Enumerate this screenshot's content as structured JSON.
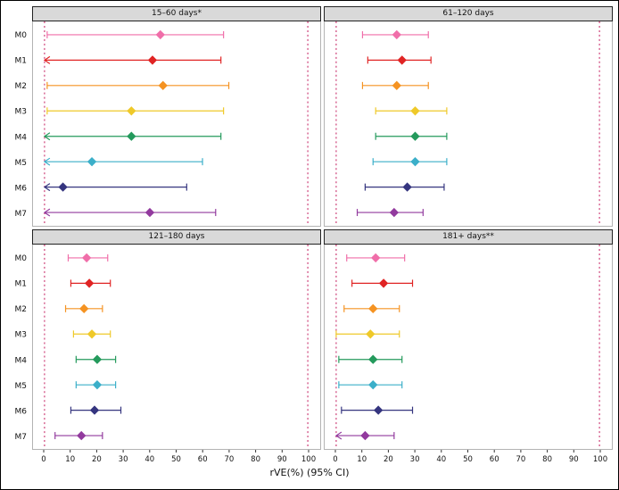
{
  "chart_data": {
    "type": "forest",
    "xlabel": "rVE(%) (95% CI)",
    "x_range": [
      0,
      100
    ],
    "x_ticks": [
      0,
      10,
      20,
      30,
      40,
      50,
      60,
      70,
      80,
      90,
      100
    ],
    "reference_lines": [
      0,
      100
    ],
    "reference_line_color": "#C2185B",
    "grid": false,
    "legend": "none",
    "row_labels": [
      "M0",
      "M1",
      "M2",
      "M3",
      "M4",
      "M5",
      "M6",
      "M7"
    ],
    "row_colors": [
      "#F06EA9",
      "#E02424",
      "#F59322",
      "#EFC929",
      "#249A5C",
      "#3BAFC9",
      "#35357F",
      "#923A9E"
    ],
    "panels": [
      {
        "title": "15–60 days*",
        "rows": [
          {
            "label": "M0",
            "est": 44,
            "lo": 1,
            "hi": 68,
            "arrow_lo": false
          },
          {
            "label": "M1",
            "est": 41,
            "lo": 0,
            "hi": 67,
            "arrow_lo": true
          },
          {
            "label": "M2",
            "est": 45,
            "lo": 1,
            "hi": 70,
            "arrow_lo": false
          },
          {
            "label": "M3",
            "est": 33,
            "lo": 1,
            "hi": 68,
            "arrow_lo": false
          },
          {
            "label": "M4",
            "est": 33,
            "lo": 0,
            "hi": 67,
            "arrow_lo": true
          },
          {
            "label": "M5",
            "est": 18,
            "lo": 0,
            "hi": 60,
            "arrow_lo": true
          },
          {
            "label": "M6",
            "est": 7,
            "lo": 0,
            "hi": 54,
            "arrow_lo": true
          },
          {
            "label": "M7",
            "est": 40,
            "lo": 0,
            "hi": 65,
            "arrow_lo": true
          }
        ]
      },
      {
        "title": "61–120 days",
        "rows": [
          {
            "label": "M0",
            "est": 23,
            "lo": 10,
            "hi": 35,
            "arrow_lo": false
          },
          {
            "label": "M1",
            "est": 25,
            "lo": 12,
            "hi": 36,
            "arrow_lo": false
          },
          {
            "label": "M2",
            "est": 23,
            "lo": 10,
            "hi": 35,
            "arrow_lo": false
          },
          {
            "label": "M3",
            "est": 30,
            "lo": 15,
            "hi": 42,
            "arrow_lo": false
          },
          {
            "label": "M4",
            "est": 30,
            "lo": 15,
            "hi": 42,
            "arrow_lo": false
          },
          {
            "label": "M5",
            "est": 30,
            "lo": 14,
            "hi": 42,
            "arrow_lo": false
          },
          {
            "label": "M6",
            "est": 27,
            "lo": 11,
            "hi": 41,
            "arrow_lo": false
          },
          {
            "label": "M7",
            "est": 22,
            "lo": 8,
            "hi": 33,
            "arrow_lo": false
          }
        ]
      },
      {
        "title": "121–180 days",
        "rows": [
          {
            "label": "M0",
            "est": 16,
            "lo": 9,
            "hi": 24,
            "arrow_lo": false
          },
          {
            "label": "M1",
            "est": 17,
            "lo": 10,
            "hi": 25,
            "arrow_lo": false
          },
          {
            "label": "M2",
            "est": 15,
            "lo": 8,
            "hi": 22,
            "arrow_lo": false
          },
          {
            "label": "M3",
            "est": 18,
            "lo": 11,
            "hi": 25,
            "arrow_lo": false
          },
          {
            "label": "M4",
            "est": 20,
            "lo": 12,
            "hi": 27,
            "arrow_lo": false
          },
          {
            "label": "M5",
            "est": 20,
            "lo": 12,
            "hi": 27,
            "arrow_lo": false
          },
          {
            "label": "M6",
            "est": 19,
            "lo": 10,
            "hi": 29,
            "arrow_lo": false
          },
          {
            "label": "M7",
            "est": 14,
            "lo": 4,
            "hi": 22,
            "arrow_lo": false
          }
        ]
      },
      {
        "title": "181+ days**",
        "rows": [
          {
            "label": "M0",
            "est": 15,
            "lo": 4,
            "hi": 26,
            "arrow_lo": false
          },
          {
            "label": "M1",
            "est": 18,
            "lo": 6,
            "hi": 29,
            "arrow_lo": false
          },
          {
            "label": "M2",
            "est": 14,
            "lo": 3,
            "hi": 24,
            "arrow_lo": false
          },
          {
            "label": "M3",
            "est": 13,
            "lo": 0,
            "hi": 24,
            "arrow_lo": false
          },
          {
            "label": "M4",
            "est": 14,
            "lo": 1,
            "hi": 25,
            "arrow_lo": false
          },
          {
            "label": "M5",
            "est": 14,
            "lo": 1,
            "hi": 25,
            "arrow_lo": false
          },
          {
            "label": "M6",
            "est": 16,
            "lo": 2,
            "hi": 29,
            "arrow_lo": false
          },
          {
            "label": "M7",
            "est": 11,
            "lo": 0,
            "hi": 22,
            "arrow_lo": true
          }
        ]
      }
    ]
  }
}
